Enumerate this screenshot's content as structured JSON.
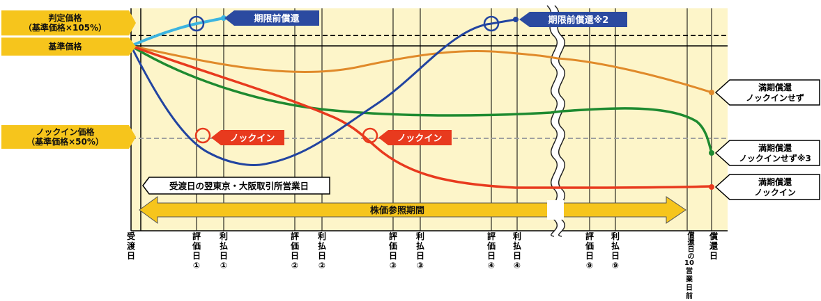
{
  "left_labels": {
    "judgement_price": [
      "判定価格",
      "（基準価格×105%）"
    ],
    "base_price": "基準価格",
    "knockin_price": [
      "ノックイン価格",
      "（基準価格×50%）"
    ]
  },
  "banners": {
    "early_redemption_1": "期限前償還",
    "early_redemption_2": "期限前償還※2",
    "knockin_1": "ノックイン",
    "knockin_2": "ノックイン"
  },
  "callouts": {
    "delivery_next_day": "受渡日の翌東京・大阪取引所営業日",
    "maturity_no_knockin": [
      "満期償還",
      "ノックインせず"
    ],
    "maturity_no_knockin_3": [
      "満期償還",
      "ノックインせず※3"
    ],
    "maturity_knockin": [
      "満期償還",
      "ノックイン"
    ]
  },
  "period_arrow": "株価参照期間",
  "x_axis": [
    {
      "id": "delivery",
      "chars": [
        "受",
        "渡",
        "日"
      ]
    },
    {
      "id": "eval-1",
      "chars": [
        "評",
        "価",
        "日",
        "①"
      ]
    },
    {
      "id": "pay-1",
      "chars": [
        "利",
        "払",
        "日",
        "①"
      ]
    },
    {
      "id": "eval-2",
      "chars": [
        "評",
        "価",
        "日",
        "②"
      ]
    },
    {
      "id": "pay-2",
      "chars": [
        "利",
        "払",
        "日",
        "②"
      ]
    },
    {
      "id": "eval-3",
      "chars": [
        "評",
        "価",
        "日",
        "③"
      ]
    },
    {
      "id": "pay-3",
      "chars": [
        "利",
        "払",
        "日",
        "③"
      ]
    },
    {
      "id": "eval-4",
      "chars": [
        "評",
        "価",
        "日",
        "④"
      ]
    },
    {
      "id": "pay-4",
      "chars": [
        "利",
        "払",
        "日",
        "④"
      ]
    },
    {
      "id": "eval-9",
      "chars": [
        "評",
        "価",
        "日",
        "⑨"
      ]
    },
    {
      "id": "pay-9",
      "chars": [
        "利",
        "払",
        "日",
        "⑨"
      ]
    },
    {
      "id": "ten-days-before",
      "chars": [
        "償還日の",
        "10",
        "営",
        "業",
        "日",
        "前"
      ]
    },
    {
      "id": "redemption",
      "chars": [
        "償",
        "還",
        "日"
      ]
    }
  ],
  "colors": {
    "background": "#fdf5c9",
    "tag": "#f6c51c",
    "banner_blue": "#2b4aa0",
    "banner_red": "#e83a1e",
    "line_cyan": "#3cb4e0",
    "line_blue": "#2244a0",
    "line_orange": "#e08a2a",
    "line_green": "#1e8a30",
    "line_red": "#e83a1e",
    "arrow": "#f6c51c"
  }
}
